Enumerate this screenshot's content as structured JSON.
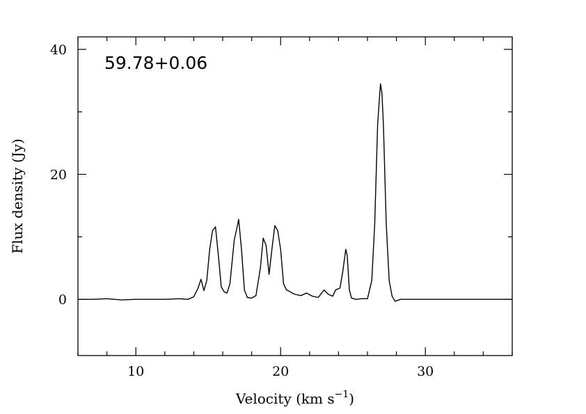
{
  "chart_data": {
    "type": "line",
    "annotation": "59.78+0.06",
    "xlabel": "Velocity (km s",
    "xlabel_sup": "−1",
    "xlabel_close": ")",
    "ylabel": "Flux density (Jy)",
    "xlim": [
      6,
      36
    ],
    "ylim": [
      -9,
      42
    ],
    "x_major_ticks": [
      10,
      20,
      30
    ],
    "x_major_tick_labels": [
      "10",
      "20",
      "30"
    ],
    "x_minor_step": 2,
    "y_major_ticks": [
      0,
      20,
      40
    ],
    "y_major_tick_labels": [
      "0",
      "20",
      "40"
    ],
    "y_minor_step": 10,
    "grid": false,
    "line_color": "#000000",
    "series": [
      {
        "x": [
          6.0,
          7.0,
          8.0,
          9.0,
          10.0,
          11.0,
          12.0,
          13.0,
          13.6,
          14.0,
          14.3,
          14.5,
          14.7,
          14.9,
          15.1,
          15.3,
          15.5,
          15.7,
          15.9,
          16.1,
          16.3,
          16.5,
          16.8,
          17.0,
          17.1,
          17.3,
          17.5,
          17.7,
          18.0,
          18.3,
          18.6,
          18.8,
          19.0,
          19.2,
          19.4,
          19.6,
          19.8,
          20.0,
          20.2,
          20.4,
          20.6,
          20.8,
          21.0,
          21.4,
          21.8,
          22.2,
          22.6,
          23.0,
          23.3,
          23.6,
          23.8,
          24.1,
          24.3,
          24.5,
          24.6,
          24.75,
          24.9,
          25.2,
          25.6,
          26.0,
          26.3,
          26.5,
          26.7,
          26.9,
          27.0,
          27.1,
          27.3,
          27.5,
          27.7,
          27.9,
          28.3,
          29.0,
          30.0,
          31.0,
          32.0,
          33.0,
          34.0,
          35.0,
          36.0
        ],
        "y": [
          0.0,
          0.0,
          0.1,
          -0.1,
          0.0,
          0.0,
          0.0,
          0.1,
          0.0,
          0.4,
          1.8,
          3.2,
          1.4,
          3.0,
          8.0,
          11.0,
          11.6,
          7.0,
          2.0,
          1.2,
          1.0,
          2.5,
          9.5,
          11.6,
          12.8,
          8.0,
          1.5,
          0.3,
          0.2,
          0.6,
          5.0,
          9.8,
          8.6,
          4.0,
          8.0,
          11.8,
          11.0,
          8.0,
          2.5,
          1.5,
          1.3,
          1.0,
          0.8,
          0.6,
          1.0,
          0.5,
          0.3,
          1.5,
          0.8,
          0.5,
          1.5,
          1.8,
          4.5,
          8.0,
          7.0,
          1.5,
          0.2,
          0.0,
          0.1,
          0.1,
          3.0,
          12.0,
          28.0,
          34.5,
          33.0,
          28.0,
          12.0,
          3.0,
          0.5,
          -0.3,
          0.0,
          0.0,
          0.0,
          0.0,
          0.0,
          0.0,
          0.0,
          0.0,
          0.0
        ]
      }
    ]
  }
}
